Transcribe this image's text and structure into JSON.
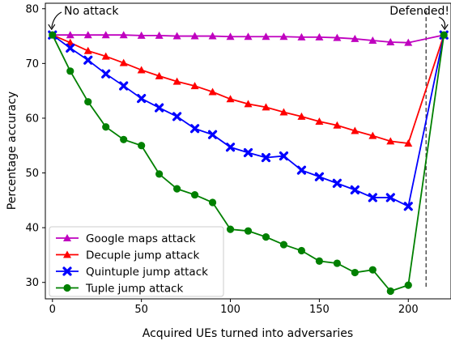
{
  "chart_data": {
    "type": "line",
    "xlabel": "Acquired UEs turned into adversaries",
    "ylabel": "Percentage accuracy",
    "xlim": [
      -4,
      224
    ],
    "ylim": [
      27,
      81
    ],
    "xticks": [
      0,
      50,
      100,
      150,
      200
    ],
    "yticks": [
      30,
      40,
      50,
      60,
      70,
      80
    ],
    "grid": false,
    "legend_position": "lower-left",
    "vline": {
      "x": 210,
      "style": "dashed",
      "color": "#444444"
    },
    "annotations": [
      {
        "text": "No attack",
        "x": 0,
        "y": 75.2
      },
      {
        "text": "Defended!",
        "x": 220,
        "y": 75.2
      }
    ],
    "series": [
      {
        "name": "Google maps attack",
        "color": "#bf00bf",
        "marker": "triangle",
        "x": [
          0,
          10,
          20,
          30,
          40,
          50,
          60,
          70,
          80,
          90,
          100,
          110,
          120,
          130,
          140,
          150,
          160,
          170,
          180,
          190,
          200,
          220
        ],
        "y": [
          75.2,
          75.2,
          75.2,
          75.2,
          75.2,
          75.1,
          75.1,
          75.0,
          75.0,
          75.0,
          74.9,
          74.9,
          74.9,
          74.9,
          74.8,
          74.8,
          74.7,
          74.5,
          74.2,
          73.9,
          73.8,
          75.2
        ]
      },
      {
        "name": "Decuple jump attack",
        "color": "#ff0000",
        "marker": "triangle",
        "x": [
          0,
          10,
          20,
          30,
          40,
          50,
          60,
          70,
          80,
          90,
          100,
          110,
          120,
          130,
          140,
          150,
          160,
          170,
          180,
          190,
          200,
          220
        ],
        "y": [
          75.2,
          73.8,
          72.3,
          71.3,
          70.1,
          68.8,
          67.7,
          66.7,
          65.9,
          64.8,
          63.5,
          62.6,
          62.0,
          61.1,
          60.3,
          59.4,
          58.7,
          57.7,
          56.8,
          55.8,
          55.4,
          75.2
        ]
      },
      {
        "name": "Quintuple jump attack",
        "color": "#0000ff",
        "marker": "x",
        "x": [
          0,
          10,
          20,
          30,
          40,
          50,
          60,
          70,
          80,
          90,
          100,
          110,
          120,
          130,
          140,
          150,
          160,
          170,
          180,
          190,
          200,
          220
        ],
        "y": [
          75.2,
          72.8,
          70.6,
          68.1,
          65.9,
          63.6,
          61.9,
          60.3,
          58.1,
          57.0,
          54.7,
          53.7,
          52.8,
          53.1,
          50.5,
          49.3,
          48.1,
          46.9,
          45.5,
          45.5,
          43.9,
          75.2
        ]
      },
      {
        "name": "Tuple jump attack",
        "color": "#008000",
        "marker": "circle",
        "x": [
          0,
          10,
          20,
          30,
          40,
          50,
          60,
          70,
          80,
          90,
          100,
          110,
          120,
          130,
          140,
          150,
          160,
          170,
          180,
          190,
          200,
          220
        ],
        "y": [
          75.2,
          68.6,
          63.0,
          58.4,
          56.1,
          55.0,
          49.8,
          47.1,
          46.0,
          44.6,
          39.7,
          39.4,
          38.3,
          36.9,
          35.8,
          33.9,
          33.5,
          31.8,
          32.3,
          28.4,
          29.5,
          75.2
        ]
      }
    ]
  }
}
